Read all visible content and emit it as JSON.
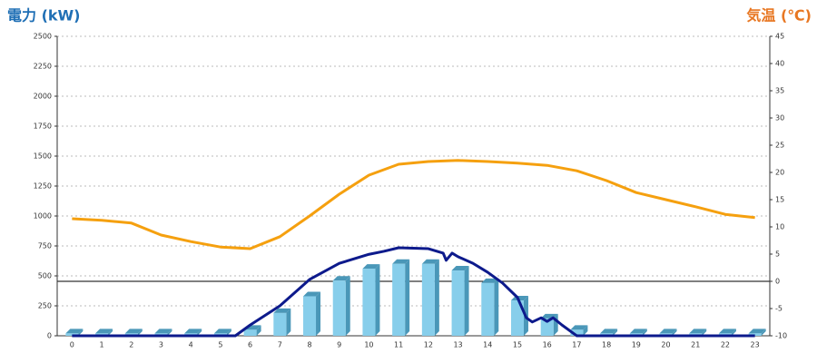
{
  "chart_data": {
    "type": "bar",
    "title": "電力 (kW)",
    "title_color": "#1f6fb5",
    "y2_title": "気温 (℃)",
    "y2_title_color": "#e87722",
    "categories": [
      "0",
      "1",
      "2",
      "3",
      "4",
      "5",
      "6",
      "7",
      "8",
      "9",
      "10",
      "11",
      "12",
      "13",
      "14",
      "15",
      "16",
      "17",
      "18",
      "19",
      "20",
      "21",
      "22",
      "23"
    ],
    "series": [
      {
        "type": "bar",
        "color": "#87ceeb",
        "side_color": "#4a97b8",
        "values": [
          20,
          20,
          20,
          20,
          20,
          20,
          50,
          190,
          330,
          460,
          560,
          600,
          600,
          545,
          440,
          295,
          145,
          50,
          20,
          20,
          20,
          20,
          20,
          20
        ]
      },
      {
        "type": "line",
        "color": "#0d1a8c",
        "x": [
          0,
          5.5,
          6,
          7,
          8,
          9,
          10,
          10.5,
          11,
          12,
          12.5,
          12.6,
          12.8,
          13,
          13.5,
          14,
          14.5,
          15,
          15.3,
          15.5,
          15.8,
          16,
          16.2,
          16.5,
          17,
          23
        ],
        "values": [
          0,
          0,
          90,
          250,
          470,
          605,
          680,
          705,
          735,
          727,
          690,
          630,
          690,
          660,
          605,
          530,
          440,
          320,
          150,
          115,
          150,
          120,
          150,
          90,
          0,
          0
        ]
      },
      {
        "type": "line",
        "axis": "y2",
        "color": "#f5a00f",
        "values": [
          11.5,
          11.2,
          10.7,
          8.5,
          7.3,
          6.3,
          6,
          8.2,
          12,
          16,
          19.5,
          21.5,
          22,
          22.2,
          22,
          21.7,
          21.3,
          20.3,
          18.5,
          16.3,
          15,
          13.7,
          12.3,
          11.7
        ]
      }
    ],
    "ylim": [
      0,
      2500
    ],
    "yticks": [
      0,
      250,
      500,
      750,
      1000,
      1250,
      1500,
      1750,
      2000,
      2250,
      2500
    ],
    "y2lim": [
      -10,
      45
    ],
    "y2ticks": [
      -10,
      -5,
      0,
      5,
      10,
      15,
      20,
      25,
      30,
      35,
      40,
      45
    ],
    "grid": true
  }
}
